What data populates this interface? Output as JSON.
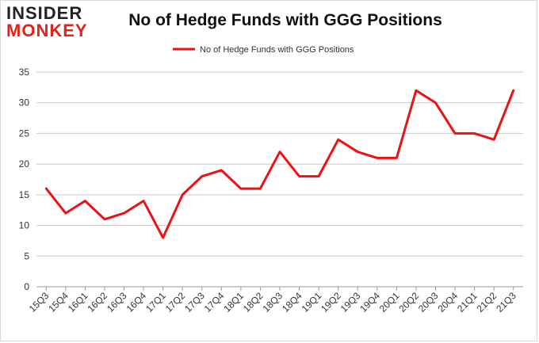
{
  "logo": {
    "line1": "INSIDER",
    "line2": "MONKEY"
  },
  "chart_data": {
    "type": "line",
    "title": "No of Hedge Funds with GGG Positions",
    "categories": [
      "15Q3",
      "15Q4",
      "16Q1",
      "16Q2",
      "16Q3",
      "16Q4",
      "17Q1",
      "17Q2",
      "17Q3",
      "17Q4",
      "18Q1",
      "18Q2",
      "18Q3",
      "18Q4",
      "19Q1",
      "19Q2",
      "19Q3",
      "19Q4",
      "20Q1",
      "20Q2",
      "20Q3",
      "20Q4",
      "21Q1",
      "21Q2",
      "21Q3"
    ],
    "series": [
      {
        "name": "No of Hedge Funds with GGG Positions",
        "color": "#ee1111",
        "values": [
          16,
          12,
          14,
          11,
          12,
          14,
          8,
          15,
          18,
          19,
          16,
          16,
          22,
          18,
          18,
          24,
          22,
          21,
          21,
          32,
          30,
          25,
          25,
          24,
          32
        ]
      }
    ],
    "ylim": [
      0,
      35
    ],
    "yticks": [
      0,
      5,
      10,
      15,
      20,
      25,
      30,
      35
    ],
    "grid": true,
    "legend_position": "top-center",
    "xlabel": "",
    "ylabel": ""
  }
}
